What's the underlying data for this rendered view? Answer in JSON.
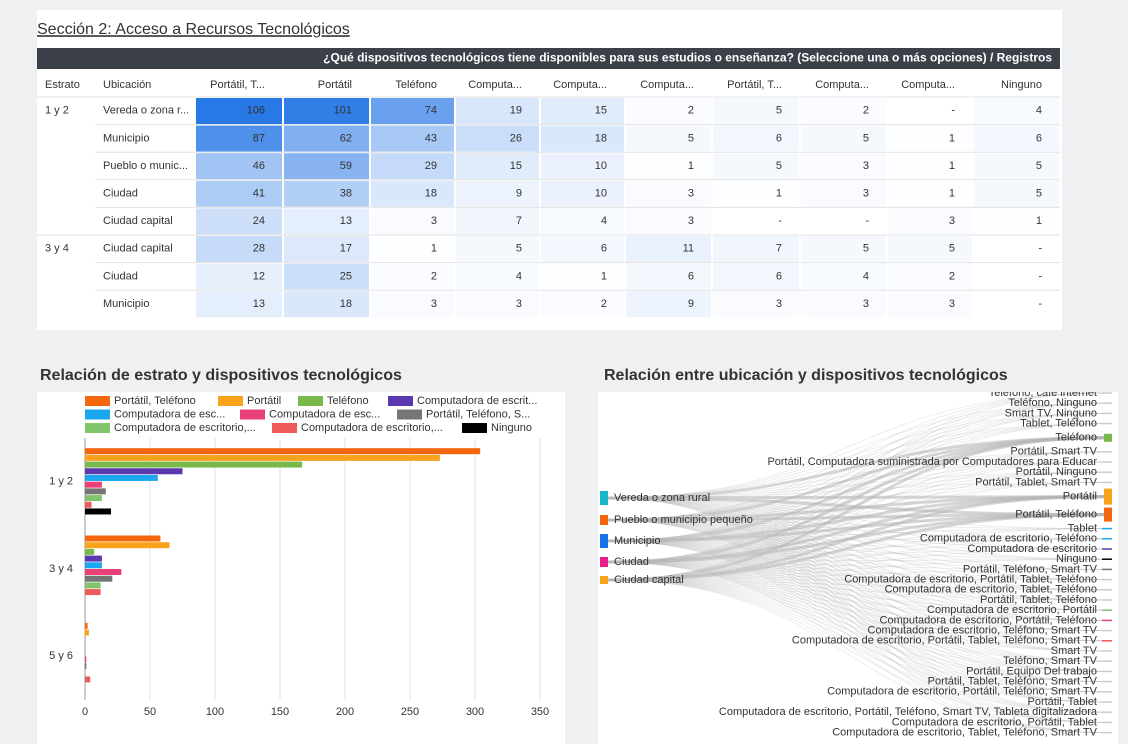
{
  "header": {
    "title": "Sección 2: Acceso a Recursos Tecnológicos"
  },
  "table": {
    "title": "¿Qué dispositivos tecnológicos tiene disponibles para sus estudios o enseñanza? (Seleccione una o más opciones) / Registros",
    "columns": [
      "Estrato",
      "Ubicación",
      "Portátil, T...",
      "Portátil",
      "Teléfono",
      "Computa...",
      "Computa...",
      "Computa...",
      "Portátil, T...",
      "Computa...",
      "Computa...",
      "Ninguno"
    ],
    "rows": [
      [
        "1 y 2",
        "Vereda o zona r...",
        106,
        101,
        74,
        19,
        15,
        2,
        5,
        2,
        "-",
        4
      ],
      [
        null,
        "Municipio",
        87,
        62,
        43,
        26,
        18,
        5,
        6,
        5,
        1,
        6
      ],
      [
        null,
        "Pueblo o munic...",
        46,
        59,
        29,
        15,
        10,
        1,
        5,
        3,
        1,
        5
      ],
      [
        null,
        "Ciudad",
        41,
        38,
        18,
        9,
        10,
        3,
        1,
        3,
        1,
        5
      ],
      [
        null,
        "Ciudad capital",
        24,
        13,
        3,
        7,
        4,
        3,
        "-",
        "-",
        3,
        1
      ],
      [
        "3 y 4",
        "Ciudad capital",
        28,
        17,
        1,
        5,
        6,
        11,
        7,
        5,
        5,
        "-"
      ],
      [
        null,
        "Ciudad",
        12,
        25,
        2,
        4,
        1,
        6,
        6,
        4,
        2,
        "-"
      ],
      [
        null,
        "Municipio",
        13,
        18,
        3,
        3,
        2,
        9,
        3,
        3,
        3,
        "-"
      ]
    ]
  },
  "chart_data": [
    {
      "type": "bar",
      "orientation": "horizontal",
      "title": "Relación de estrato y dispositivos tecnológicos",
      "categories": [
        "1 y 2",
        "3 y 4",
        "5 y 6"
      ],
      "series": [
        {
          "name": "Portátil, Teléfono",
          "color": "#f5670f",
          "values": [
            304,
            58,
            2
          ]
        },
        {
          "name": "Portátil",
          "color": "#f9a21b",
          "values": [
            273,
            65,
            3
          ]
        },
        {
          "name": "Teléfono",
          "color": "#79b84a",
          "values": [
            167,
            7,
            0
          ]
        },
        {
          "name": "Computadora de escrit...",
          "color": "#5b37b0",
          "values": [
            75,
            13,
            0
          ]
        },
        {
          "name": "Computadora de esc...",
          "color": "#1aa7ef",
          "values": [
            56,
            13,
            0
          ]
        },
        {
          "name": "Computadora de esc...",
          "color": "#e84077",
          "values": [
            13,
            28,
            1
          ]
        },
        {
          "name": "Portátil, Teléfono, S...",
          "color": "#757575",
          "values": [
            16,
            21,
            1
          ]
        },
        {
          "name": "Computadora de escritorio,...",
          "color": "#82c46c",
          "values": [
            13,
            12,
            0
          ]
        },
        {
          "name": "Computadora de escritorio,...",
          "color": "#ed5a5a",
          "values": [
            5,
            12,
            4
          ]
        },
        {
          "name": "Ninguno",
          "color": "#000000",
          "values": [
            20,
            0,
            0
          ]
        }
      ],
      "xlim": [
        0,
        350
      ],
      "xticks": [
        0,
        50,
        100,
        150,
        200,
        250,
        300,
        350
      ],
      "grid": true,
      "legend": "top"
    },
    {
      "type": "sankey",
      "title": "Relación entre ubicación y dispositivos tecnológicos",
      "sources": [
        {
          "name": "Vereda o zona rural",
          "color": "#19b6c8"
        },
        {
          "name": "Pueblo o municipio pequeño",
          "color": "#f5670f"
        },
        {
          "name": "Municipio",
          "color": "#1a73e8"
        },
        {
          "name": "Ciudad",
          "color": "#e91e8c"
        },
        {
          "name": "Ciudad capital",
          "color": "#f9a21b"
        }
      ],
      "targets": [
        {
          "name": "Teléfono, café internet",
          "color": "#cccccc"
        },
        {
          "name": "Teléfono, Ninguno",
          "color": "#cccccc"
        },
        {
          "name": "Smart TV, Ninguno",
          "color": "#cccccc"
        },
        {
          "name": "Tablet, Teléfono",
          "color": "#cccccc"
        },
        {
          "name": "Teléfono",
          "color": "#79b84a"
        },
        {
          "name": "Portátil, Smart TV",
          "color": "#cccccc"
        },
        {
          "name": "Portátil, Computadora suministrada por Computadores para Educar",
          "color": "#cccccc"
        },
        {
          "name": "Portátil, Ninguno",
          "color": "#cccccc"
        },
        {
          "name": "Portátil, Tablet, Smart TV",
          "color": "#cccccc"
        },
        {
          "name": "Portátil",
          "color": "#f9a21b"
        },
        {
          "name": "Portátil, Teléfono",
          "color": "#f5670f"
        },
        {
          "name": "Tablet",
          "color": "#1aa7ef"
        },
        {
          "name": "Computadora de escritorio, Teléfono",
          "color": "#1aa7ef"
        },
        {
          "name": "Computadora de escritorio",
          "color": "#5b37b0"
        },
        {
          "name": "Ninguno",
          "color": "#000000"
        },
        {
          "name": "Portátil, Teléfono, Smart TV",
          "color": "#757575"
        },
        {
          "name": "Computadora de escritorio, Portátil, Tablet, Teléfono",
          "color": "#cccccc"
        },
        {
          "name": "Computadora de escritorio, Tablet, Teléfono",
          "color": "#cccccc"
        },
        {
          "name": "Portátil, Tablet, Teléfono",
          "color": "#cccccc"
        },
        {
          "name": "Computadora de escritorio, Portátil",
          "color": "#82c46c"
        },
        {
          "name": "Computadora de escritorio, Portátil, Teléfono",
          "color": "#e84077"
        },
        {
          "name": "Computadora de escritorio, Teléfono, Smart TV",
          "color": "#cccccc"
        },
        {
          "name": "Computadora de escritorio, Portátil, Tablet, Teléfono, Smart TV",
          "color": "#ed5a5a"
        },
        {
          "name": "Smart TV",
          "color": "#cccccc"
        },
        {
          "name": "Teléfono, Smart TV",
          "color": "#cccccc"
        },
        {
          "name": "Portátil, Equipo Del trabajo",
          "color": "#cccccc"
        },
        {
          "name": "Portátil, Tablet, Teléfono, Smart TV",
          "color": "#cccccc"
        },
        {
          "name": "Computadora de escritorio, Portátil, Teléfono, Smart TV",
          "color": "#cccccc"
        },
        {
          "name": "Portátil, Tablet",
          "color": "#cccccc"
        },
        {
          "name": "Computadora de escritorio, Portátil, Teléfono, Smart TV, Tableta digitalizadora",
          "color": "#cccccc"
        },
        {
          "name": "Computadora de escritorio, Portátil, Tablet",
          "color": "#cccccc"
        },
        {
          "name": "Computadora de escritorio, Tablet, Teléfono, Smart TV",
          "color": "#cccccc"
        }
      ]
    }
  ]
}
